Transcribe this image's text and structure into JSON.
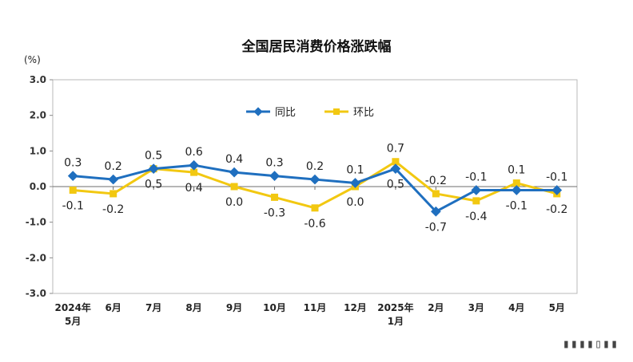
{
  "chart_data": {
    "type": "line",
    "title": "全国居民消费价格涨跌幅",
    "unit_label": "(%)",
    "categories": [
      [
        "2024年",
        "5月"
      ],
      [
        "6月"
      ],
      [
        "7月"
      ],
      [
        "8月"
      ],
      [
        "9月"
      ],
      [
        "10月"
      ],
      [
        "11月"
      ],
      [
        "12月"
      ],
      [
        "2025年",
        "1月"
      ],
      [
        "2月"
      ],
      [
        "3月"
      ],
      [
        "4月"
      ],
      [
        "5月"
      ]
    ],
    "ylim": [
      -3.0,
      3.0
    ],
    "yticks": [
      "3.0",
      "2.0",
      "1.0",
      "0.0",
      "-1.0",
      "-2.0",
      "-3.0"
    ],
    "ytick_values": [
      3,
      2,
      1,
      0,
      -1,
      -2,
      -3
    ],
    "legend_position": "top-center",
    "series": [
      {
        "name": "同比",
        "color": "#1f6fbf",
        "values": [
          0.3,
          0.2,
          0.5,
          0.6,
          0.4,
          0.3,
          0.2,
          0.1,
          0.5,
          -0.7,
          -0.1,
          -0.1,
          -0.1
        ],
        "labels": [
          "0.3",
          "0.2",
          "0.5",
          "0.6",
          "0.4",
          "0.3",
          "0.2",
          "0.1",
          "0.5",
          "-0.7",
          "-0.1",
          "-0.1",
          "-0.1"
        ]
      },
      {
        "name": "环比",
        "color": "#f2c811",
        "values": [
          -0.1,
          -0.2,
          0.5,
          0.4,
          0.0,
          -0.3,
          -0.6,
          0.0,
          0.7,
          -0.2,
          -0.4,
          0.1,
          -0.2
        ],
        "labels": [
          "-0.1",
          "-0.2",
          "0.5",
          "0.4",
          "0.0",
          "-0.3",
          "-0.6",
          "0.0",
          "0.7",
          "-0.2",
          "-0.4",
          "0.1",
          "-0.2"
        ]
      }
    ]
  }
}
